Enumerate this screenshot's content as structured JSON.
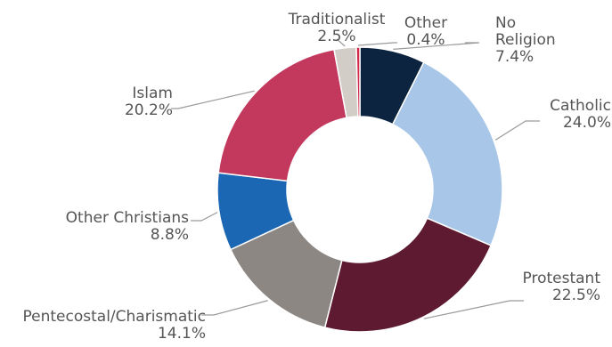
{
  "chart_data": {
    "type": "pie",
    "variant": "donut",
    "title": "",
    "legend": "none",
    "slices": [
      {
        "name": "No Religion",
        "label_lines": [
          "No",
          "Religion"
        ],
        "value": 7.4,
        "value_label": "7.4%",
        "color": "#0d2440"
      },
      {
        "name": "Catholic",
        "label_lines": [
          "Catholic"
        ],
        "value": 24.0,
        "value_label": "24.0%",
        "color": "#a8c6e8"
      },
      {
        "name": "Protestant",
        "label_lines": [
          "Protestant"
        ],
        "value": 22.5,
        "value_label": "22.5%",
        "color": "#5e1a31"
      },
      {
        "name": "Pentecostal/Charismatic",
        "label_lines": [
          "Pentecostal/Charismatic"
        ],
        "value": 14.1,
        "value_label": "14.1%",
        "color": "#8c8782"
      },
      {
        "name": "Other Christians",
        "label_lines": [
          "Other Christians"
        ],
        "value": 8.8,
        "value_label": "8.8%",
        "color": "#1c67b4"
      },
      {
        "name": "Islam",
        "label_lines": [
          "Islam"
        ],
        "value": 20.2,
        "value_label": "20.2%",
        "color": "#c3385d"
      },
      {
        "name": "Traditionalist",
        "label_lines": [
          "Traditionalist"
        ],
        "value": 2.5,
        "value_label": "2.5%",
        "color": "#d2cdc6"
      },
      {
        "name": "Other",
        "label_lines": [
          "Other"
        ],
        "value": 0.4,
        "value_label": "0.4%",
        "color": "#d0264a"
      }
    ]
  }
}
